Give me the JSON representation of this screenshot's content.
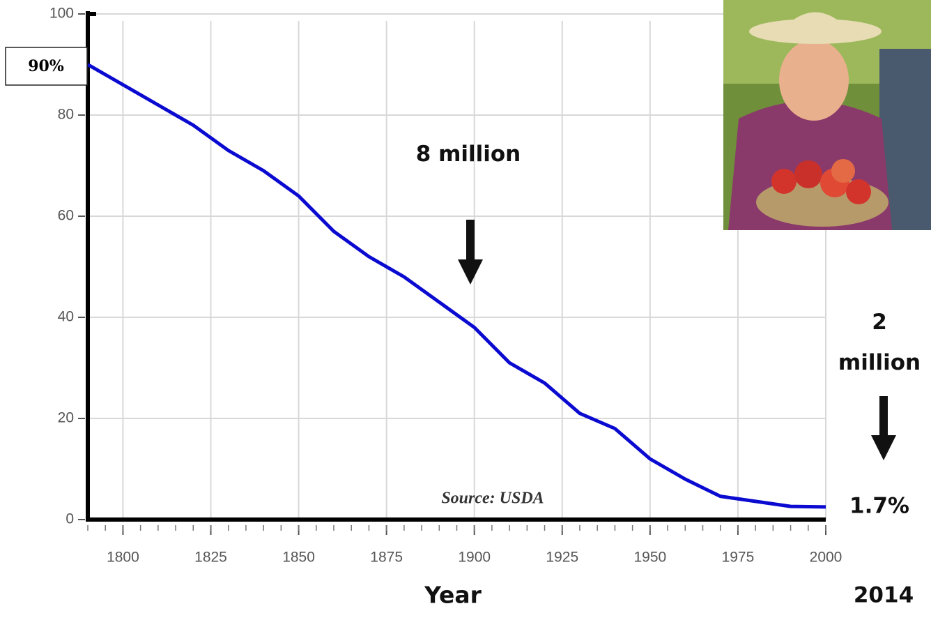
{
  "chart_data": {
    "type": "line",
    "x": [
      1790,
      1800,
      1810,
      1820,
      1830,
      1840,
      1850,
      1860,
      1870,
      1880,
      1890,
      1900,
      1910,
      1920,
      1930,
      1940,
      1950,
      1960,
      1970,
      1980,
      1990,
      2000
    ],
    "series": [
      {
        "color": "#0a0ad0",
        "values": [
          90,
          86,
          82,
          78,
          73,
          69,
          64,
          57,
          52,
          48,
          43,
          38,
          31,
          27,
          21,
          18,
          12,
          8,
          4.6,
          3.6,
          2.6,
          2.5
        ]
      }
    ],
    "xlim": [
      1790,
      2000
    ],
    "xticks": [
      1800,
      1825,
      1850,
      1875,
      1900,
      1925,
      1950,
      1975,
      2000
    ],
    "xminorticks": [
      1790,
      1795,
      1800,
      1805,
      1810,
      1815,
      1820,
      1825,
      1830,
      1835,
      1840,
      1845,
      1850,
      1855,
      1860,
      1865,
      1870,
      1875,
      1880,
      1885,
      1890,
      1895,
      1900,
      1905,
      1910,
      1915,
      1920,
      1925,
      1930,
      1935,
      1940,
      1945,
      1950,
      1955,
      1960,
      1965,
      1970,
      1975,
      1980,
      1985,
      1990,
      1995,
      2000
    ],
    "ylim": [
      0,
      100
    ],
    "yticks": [
      0,
      20,
      40,
      60,
      80,
      100
    ],
    "grid": true,
    "xlabel": "Year",
    "annotations": {
      "start": "90%",
      "mid": "8 million",
      "end_count": "2 million",
      "end_share": "1.7%",
      "end_year": "2014",
      "source": "Source: USDA"
    }
  }
}
